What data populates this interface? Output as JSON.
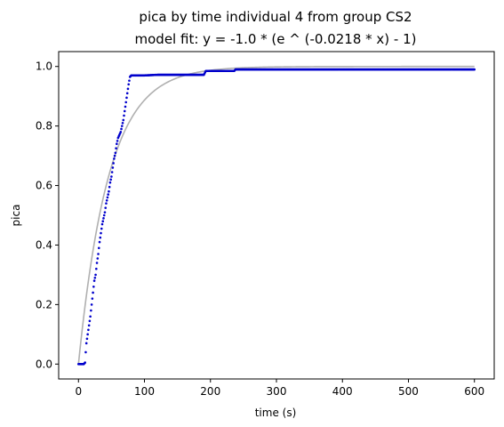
{
  "chart_data": {
    "type": "scatter",
    "title": "pica by time individual 4 from group CS2",
    "subtitle": "model fit: y = -1.0 * (e ^ (-0.0218 * x) - 1)",
    "xlabel": "time (s)",
    "ylabel": "pica",
    "xlim": [
      -30,
      630
    ],
    "ylim": [
      -0.05,
      1.05
    ],
    "xticks": [
      0,
      100,
      200,
      300,
      400,
      500,
      600
    ],
    "yticks": [
      0.0,
      0.2,
      0.4,
      0.6,
      0.8,
      1.0
    ],
    "grid": false,
    "legend": "none",
    "fit": {
      "a": -1.0,
      "b": -0.0218,
      "x_range": [
        0,
        600
      ],
      "color": "#b0b0b0"
    },
    "series": [
      {
        "color": "#0000cc",
        "points": [
          [
            0,
            0.0
          ],
          [
            2,
            0.0
          ],
          [
            4,
            0.0
          ],
          [
            6,
            0.0
          ],
          [
            8,
            0.0
          ],
          [
            10,
            0.005
          ],
          [
            11,
            0.04
          ],
          [
            12,
            0.07
          ],
          [
            14,
            0.1
          ],
          [
            16,
            0.13
          ],
          [
            18,
            0.16
          ],
          [
            20,
            0.2
          ],
          [
            22,
            0.24
          ],
          [
            24,
            0.28
          ],
          [
            26,
            0.3
          ],
          [
            28,
            0.34
          ],
          [
            30,
            0.37
          ],
          [
            32,
            0.41
          ],
          [
            34,
            0.44
          ],
          [
            36,
            0.47
          ],
          [
            38,
            0.49
          ],
          [
            40,
            0.51
          ],
          [
            42,
            0.54
          ],
          [
            44,
            0.56
          ],
          [
            46,
            0.58
          ],
          [
            48,
            0.61
          ],
          [
            50,
            0.63
          ],
          [
            52,
            0.66
          ],
          [
            54,
            0.69
          ],
          [
            56,
            0.71
          ],
          [
            58,
            0.74
          ],
          [
            60,
            0.76
          ],
          [
            62,
            0.77
          ],
          [
            64,
            0.78
          ],
          [
            66,
            0.8
          ],
          [
            68,
            0.82
          ],
          [
            70,
            0.85
          ],
          [
            72,
            0.88
          ],
          [
            74,
            0.91
          ],
          [
            76,
            0.94
          ],
          [
            78,
            0.965
          ],
          [
            80,
            0.97
          ],
          [
            90,
            0.97
          ],
          [
            100,
            0.97
          ],
          [
            120,
            0.972
          ],
          [
            140,
            0.972
          ],
          [
            160,
            0.972
          ],
          [
            180,
            0.972
          ],
          [
            190,
            0.972
          ],
          [
            193,
            0.985
          ],
          [
            200,
            0.985
          ],
          [
            220,
            0.985
          ],
          [
            236,
            0.985
          ],
          [
            238,
            0.99
          ],
          [
            260,
            0.99
          ],
          [
            300,
            0.99
          ],
          [
            350,
            0.99
          ],
          [
            400,
            0.99
          ],
          [
            450,
            0.99
          ],
          [
            500,
            0.99
          ],
          [
            550,
            0.99
          ],
          [
            600,
            0.99
          ]
        ]
      }
    ]
  }
}
